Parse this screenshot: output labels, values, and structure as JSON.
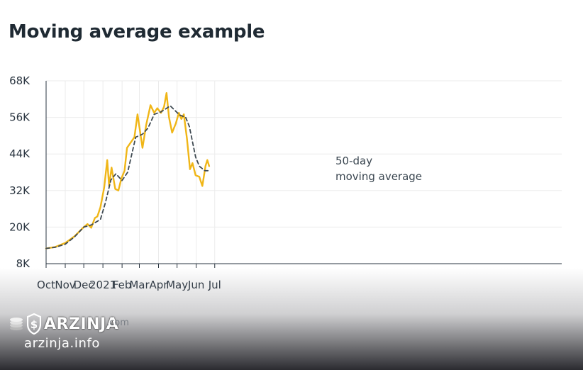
{
  "header": {
    "title": "Moving average example"
  },
  "chart_data": {
    "type": "line",
    "title": "Moving average example",
    "xlabel": "",
    "ylabel": "",
    "x_tick_labels": [
      "Oct",
      "Nov",
      "Dec",
      "2021",
      "Feb",
      "Mar",
      "Apr",
      "May",
      "Jun",
      "Jul"
    ],
    "y_tick_labels": [
      "8K",
      "20K",
      "32K",
      "44K",
      "56K",
      "68K"
    ],
    "ylim": [
      8000,
      68000
    ],
    "xlim": [
      "2020-10-01",
      "2021-07-01"
    ],
    "grid": true,
    "legend": "none",
    "annotation": {
      "lines": [
        "50-day",
        "moving average"
      ]
    },
    "series": [
      {
        "color": "#f0b617",
        "style": "solid",
        "points": [
          [
            "2020-10-01",
            13000
          ],
          [
            "2020-10-16",
            13500
          ],
          [
            "2020-11-01",
            14800
          ],
          [
            "2020-11-16",
            17000
          ],
          [
            "2020-12-01",
            20000
          ],
          [
            "2020-12-07",
            21000
          ],
          [
            "2020-12-13",
            19800
          ],
          [
            "2020-12-19",
            23000
          ],
          [
            "2020-12-23",
            23500
          ],
          [
            "2020-12-28",
            26500
          ],
          [
            "2021-01-03",
            33000
          ],
          [
            "2021-01-08",
            42000
          ],
          [
            "2021-01-11",
            33500
          ],
          [
            "2021-01-15",
            39500
          ],
          [
            "2021-01-21",
            32500
          ],
          [
            "2021-01-26",
            32000
          ],
          [
            "2021-01-31",
            36000
          ],
          [
            "2021-02-05",
            38500
          ],
          [
            "2021-02-09",
            46000
          ],
          [
            "2021-02-21",
            49500
          ],
          [
            "2021-02-26",
            57000
          ],
          [
            "2021-03-06",
            46000
          ],
          [
            "2021-03-12",
            53500
          ],
          [
            "2021-03-19",
            60000
          ],
          [
            "2021-03-25",
            57500
          ],
          [
            "2021-03-30",
            59000
          ],
          [
            "2021-04-05",
            57500
          ],
          [
            "2021-04-10",
            59500
          ],
          [
            "2021-04-14",
            64000
          ],
          [
            "2021-04-18",
            56000
          ],
          [
            "2021-04-23",
            51000
          ],
          [
            "2021-04-29",
            54000
          ],
          [
            "2021-05-04",
            57500
          ],
          [
            "2021-05-08",
            55500
          ],
          [
            "2021-05-12",
            57000
          ],
          [
            "2021-05-17",
            49000
          ],
          [
            "2021-05-22",
            39000
          ],
          [
            "2021-05-26",
            41000
          ],
          [
            "2021-05-31",
            37000
          ],
          [
            "2021-06-06",
            36500
          ],
          [
            "2021-06-11",
            33500
          ],
          [
            "2021-06-16",
            40000
          ],
          [
            "2021-06-19",
            42000
          ],
          [
            "2021-06-22",
            40000
          ]
        ]
      },
      {
        "color": "#3f4a52",
        "style": "dashed",
        "points": [
          [
            "2020-10-01",
            13000
          ],
          [
            "2020-10-16",
            13400
          ],
          [
            "2020-11-01",
            14400
          ],
          [
            "2020-11-16",
            16800
          ],
          [
            "2020-12-01",
            20000
          ],
          [
            "2020-12-13",
            20700
          ],
          [
            "2020-12-28",
            22500
          ],
          [
            "2021-01-05",
            28000
          ],
          [
            "2021-01-14",
            35500
          ],
          [
            "2021-01-22",
            37500
          ],
          [
            "2021-02-01",
            35300
          ],
          [
            "2021-02-10",
            38000
          ],
          [
            "2021-02-23",
            49500
          ],
          [
            "2021-03-06",
            50500
          ],
          [
            "2021-03-15",
            52500
          ],
          [
            "2021-03-25",
            57000
          ],
          [
            "2021-04-05",
            57800
          ],
          [
            "2021-04-20",
            59800
          ],
          [
            "2021-05-05",
            56800
          ],
          [
            "2021-05-15",
            56000
          ],
          [
            "2021-05-21",
            53000
          ],
          [
            "2021-05-31",
            43000
          ],
          [
            "2021-06-06",
            40000
          ],
          [
            "2021-06-15",
            38500
          ],
          [
            "2021-06-20",
            38500
          ]
        ]
      }
    ]
  },
  "watermark": {
    "brand": "ARZINJA",
    "ghost_domain": ".com",
    "url": "arzinja.info"
  }
}
